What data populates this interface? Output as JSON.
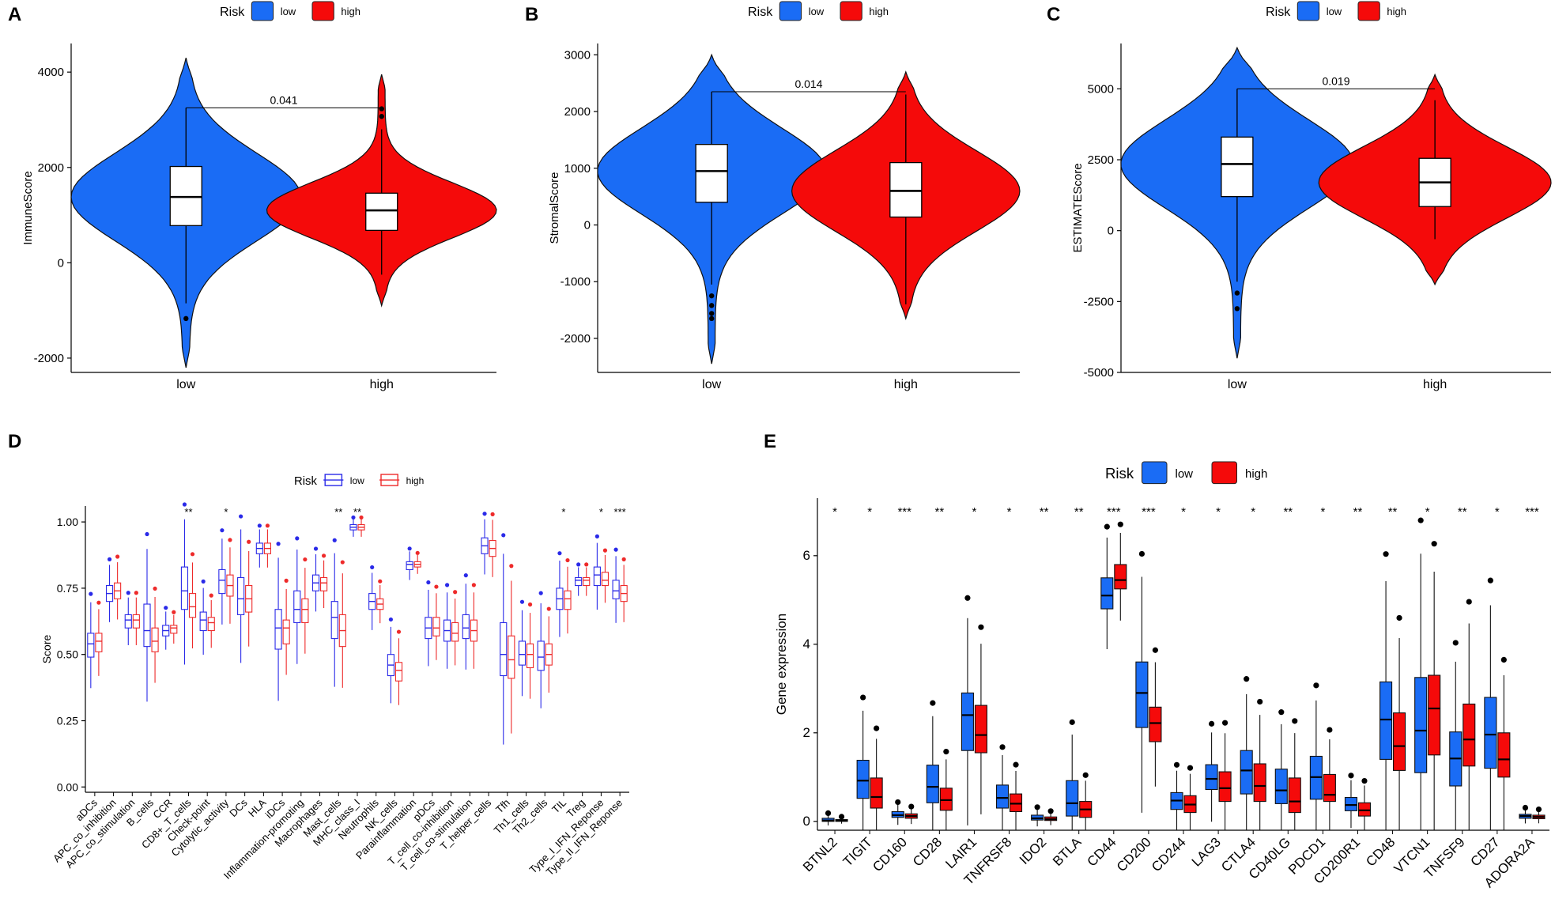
{
  "figure": {
    "panel_labels": [
      "A",
      "B",
      "C",
      "D",
      "E"
    ],
    "legend_title": "Risk",
    "legend_low": "low",
    "legend_high": "high",
    "color_low": "#1a6cf5",
    "color_high": "#f50a0a",
    "box_low_D": "#2a2ae8",
    "box_high_D": "#ee2a2a"
  },
  "chart_data": [
    {
      "type": "violin",
      "panel": "A",
      "ylabel": "ImmuneScore",
      "categories": [
        "low",
        "high"
      ],
      "ylim": [
        -2300,
        4600
      ],
      "yticks": [
        -2000,
        0,
        2000,
        4000
      ],
      "p_value": "0.041",
      "groups": [
        {
          "name": "low",
          "q1": 780,
          "median": 1380,
          "q3": 2020,
          "whisker_low": -850,
          "whisker_high": 3250,
          "outliers": [
            -1170
          ],
          "range": [
            -2200,
            4300
          ]
        },
        {
          "name": "high",
          "q1": 680,
          "median": 1100,
          "q3": 1460,
          "whisker_low": -250,
          "whisker_high": 2800,
          "outliers": [
            3070,
            3230
          ],
          "range": [
            -900,
            3950
          ]
        }
      ]
    },
    {
      "type": "violin",
      "panel": "B",
      "ylabel": "StromalScore",
      "categories": [
        "low",
        "high"
      ],
      "ylim": [
        -2600,
        3200
      ],
      "yticks": [
        -2000,
        -1000,
        0,
        1000,
        2000,
        3000
      ],
      "p_value": "0.014",
      "groups": [
        {
          "name": "low",
          "q1": 400,
          "median": 950,
          "q3": 1420,
          "whisker_low": -1050,
          "whisker_high": 2350,
          "outliers": [
            -1250,
            -1420,
            -1560,
            -1650
          ],
          "range": [
            -2450,
            3000
          ]
        },
        {
          "name": "high",
          "q1": 140,
          "median": 600,
          "q3": 1100,
          "whisker_low": -1400,
          "whisker_high": 2300,
          "outliers": [],
          "range": [
            -1650,
            2700
          ]
        }
      ]
    },
    {
      "type": "violin",
      "panel": "C",
      "ylabel": "ESTIMATEScore",
      "categories": [
        "low",
        "high"
      ],
      "ylim": [
        -5000,
        6600
      ],
      "yticks": [
        -5000,
        -2500,
        0,
        2500,
        5000
      ],
      "p_value": "0.019",
      "groups": [
        {
          "name": "low",
          "q1": 1200,
          "median": 2350,
          "q3": 3300,
          "whisker_low": -1800,
          "whisker_high": 5000,
          "outliers": [
            -2200,
            -2750
          ],
          "range": [
            -4500,
            6450
          ]
        },
        {
          "name": "high",
          "q1": 850,
          "median": 1700,
          "q3": 2550,
          "whisker_low": -300,
          "whisker_high": 4600,
          "outliers": [],
          "range": [
            -1900,
            5500
          ]
        }
      ]
    },
    {
      "type": "boxplot",
      "panel": "D",
      "ylabel": "Score",
      "ylim": [
        -0.02,
        1.06
      ],
      "yticks": [
        "0.00",
        "0.25",
        "0.50",
        "0.75",
        "1.00"
      ],
      "categories": [
        "aDCs",
        "APC_co_inhibition",
        "APC_co_stimulation",
        "B_cells",
        "CCR",
        "CD8+_T_cells",
        "Check-point",
        "Cytolytic_activity",
        "DCs",
        "HLA",
        "iDCs",
        "Inflammation-promoting",
        "Macrophages",
        "Mast_cells",
        "MHC_class_I",
        "Neutrophils",
        "NK_cells",
        "Parainflammation",
        "pDCs",
        "T_cell_co-inhibition",
        "T_cell_co-stimulation",
        "T_helper_cells",
        "Tfh",
        "Th1_cells",
        "Th2_cells",
        "TIL",
        "Treg",
        "Type_I_IFN_Reponse",
        "Type_II_IFN_Reponse"
      ],
      "significance": [
        "",
        "",
        "",
        "",
        "",
        "**",
        "",
        "*",
        "",
        "",
        "",
        "",
        "",
        "**",
        "**",
        "",
        "",
        "",
        "",
        "",
        "",
        "",
        "",
        "",
        "",
        "*",
        "",
        "*",
        "***"
      ],
      "series": [
        {
          "name": "low",
          "medians": [
            0.54,
            0.73,
            0.63,
            0.59,
            0.59,
            0.74,
            0.63,
            0.78,
            0.71,
            0.9,
            0.6,
            0.67,
            0.77,
            0.64,
            0.98,
            0.7,
            0.46,
            0.84,
            0.6,
            0.59,
            0.6,
            0.91,
            0.5,
            0.5,
            0.49,
            0.71,
            0.78,
            0.8,
            0.74
          ],
          "q1": [
            0.49,
            0.7,
            0.6,
            0.53,
            0.57,
            0.67,
            0.59,
            0.73,
            0.65,
            0.88,
            0.52,
            0.62,
            0.74,
            0.56,
            0.97,
            0.67,
            0.42,
            0.82,
            0.56,
            0.55,
            0.56,
            0.88,
            0.42,
            0.46,
            0.44,
            0.67,
            0.76,
            0.76,
            0.71
          ],
          "q3": [
            0.58,
            0.76,
            0.65,
            0.69,
            0.61,
            0.83,
            0.66,
            0.82,
            0.79,
            0.92,
            0.67,
            0.74,
            0.8,
            0.7,
            0.99,
            0.73,
            0.5,
            0.85,
            0.64,
            0.63,
            0.65,
            0.94,
            0.62,
            0.55,
            0.55,
            0.75,
            0.79,
            0.83,
            0.78
          ]
        },
        {
          "name": "high",
          "medians": [
            0.55,
            0.74,
            0.63,
            0.55,
            0.6,
            0.68,
            0.62,
            0.76,
            0.71,
            0.9,
            0.6,
            0.67,
            0.77,
            0.59,
            0.98,
            0.69,
            0.44,
            0.84,
            0.6,
            0.58,
            0.59,
            0.9,
            0.48,
            0.5,
            0.5,
            0.71,
            0.78,
            0.78,
            0.73
          ],
          "q1": [
            0.51,
            0.71,
            0.6,
            0.51,
            0.58,
            0.64,
            0.59,
            0.72,
            0.66,
            0.88,
            0.54,
            0.62,
            0.74,
            0.53,
            0.97,
            0.67,
            0.4,
            0.83,
            0.57,
            0.55,
            0.55,
            0.87,
            0.41,
            0.45,
            0.46,
            0.67,
            0.76,
            0.76,
            0.7
          ],
          "q3": [
            0.58,
            0.77,
            0.65,
            0.6,
            0.61,
            0.73,
            0.64,
            0.8,
            0.76,
            0.92,
            0.63,
            0.71,
            0.79,
            0.65,
            0.99,
            0.71,
            0.47,
            0.85,
            0.64,
            0.62,
            0.63,
            0.93,
            0.57,
            0.54,
            0.54,
            0.74,
            0.79,
            0.81,
            0.76
          ]
        }
      ]
    },
    {
      "type": "boxplot",
      "panel": "E",
      "ylabel": "Gene expression",
      "ylim": [
        -0.2,
        7.3
      ],
      "yticks": [
        "0",
        "2",
        "4",
        "6"
      ],
      "categories": [
        "BTNL2",
        "TIGIT",
        "CD160",
        "CD28",
        "LAIR1",
        "TNFRSF8",
        "IDO2",
        "BTLA",
        "CD44",
        "CD200",
        "CD244",
        "LAG3",
        "CTLA4",
        "CD40LG",
        "PDCD1",
        "CD200R1",
        "CD48",
        "VTCN1",
        "TNFSF9",
        "CD27",
        "ADORA2A"
      ],
      "significance": [
        "*",
        "*",
        "***",
        "**",
        "*",
        "*",
        "**",
        "**",
        "***",
        "***",
        "*",
        "*",
        "*",
        "**",
        "*",
        "**",
        "**",
        "*",
        "**",
        "*",
        "***"
      ],
      "series": [
        {
          "name": "low",
          "medians": [
            0.02,
            0.92,
            0.14,
            0.78,
            2.4,
            0.53,
            0.07,
            0.41,
            5.1,
            2.9,
            0.47,
            0.96,
            1.15,
            0.7,
            1.0,
            0.37,
            2.3,
            2.05,
            1.42,
            1.96,
            0.12
          ],
          "q1": [
            0.0,
            0.52,
            0.09,
            0.42,
            1.6,
            0.3,
            0.03,
            0.12,
            4.8,
            2.12,
            0.27,
            0.72,
            0.62,
            0.4,
            0.5,
            0.24,
            1.4,
            1.1,
            0.8,
            1.2,
            0.07
          ],
          "q3": [
            0.07,
            1.38,
            0.22,
            1.27,
            2.9,
            0.82,
            0.14,
            0.92,
            5.5,
            3.6,
            0.65,
            1.28,
            1.6,
            1.18,
            1.47,
            0.54,
            3.15,
            3.25,
            2.02,
            2.8,
            0.16
          ]
        },
        {
          "name": "high",
          "medians": [
            0.02,
            0.55,
            0.12,
            0.48,
            1.95,
            0.4,
            0.05,
            0.27,
            5.45,
            2.22,
            0.38,
            0.75,
            0.8,
            0.45,
            0.6,
            0.25,
            1.7,
            2.55,
            1.85,
            1.4,
            0.1
          ],
          "q1": [
            0.0,
            0.3,
            0.07,
            0.25,
            1.55,
            0.22,
            0.02,
            0.09,
            5.25,
            1.8,
            0.2,
            0.45,
            0.45,
            0.2,
            0.45,
            0.12,
            1.15,
            1.5,
            1.25,
            1.0,
            0.06
          ],
          "q3": [
            0.04,
            0.98,
            0.17,
            0.75,
            2.62,
            0.62,
            0.1,
            0.45,
            5.8,
            2.58,
            0.58,
            1.12,
            1.3,
            0.98,
            1.06,
            0.42,
            2.45,
            3.3,
            2.65,
            2.0,
            0.14
          ]
        }
      ]
    }
  ]
}
